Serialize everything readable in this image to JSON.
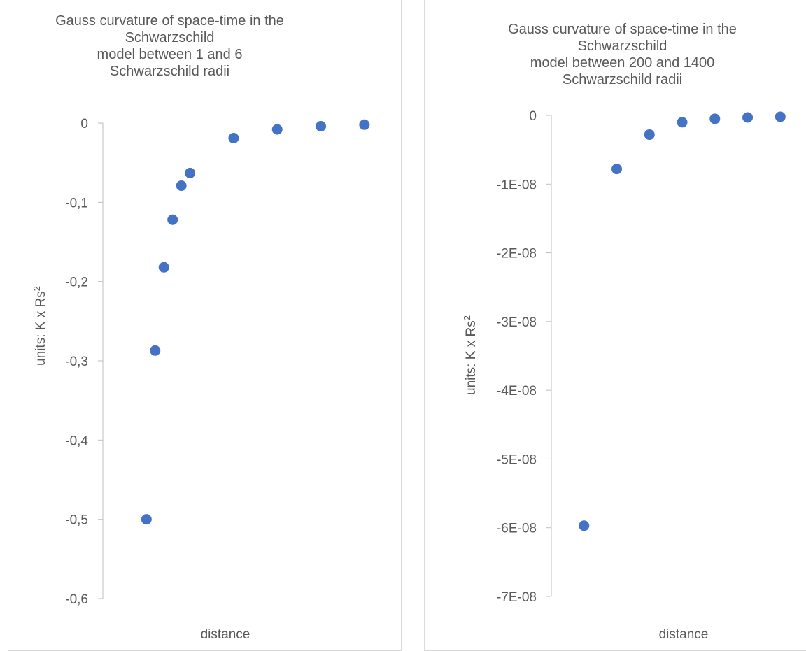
{
  "chart_data": [
    {
      "type": "scatter",
      "title_lines": [
        "Gauss curvature of space-time in the",
        "Schwarzschild",
        "model between 1 and 6",
        "Schwarzschild radii"
      ],
      "xlabel": "distance",
      "ylabel": "units:  K x Rs",
      "ylabel_superscript": "2",
      "yticks": [
        "0",
        "-0,1",
        "-0,2",
        "-0,3",
        "-0,4",
        "-0,5",
        "-0,6"
      ],
      "ylim": [
        -0.6,
        0
      ],
      "xlim": [
        0,
        6.5
      ],
      "grid": false,
      "marker_color": "#4472c4",
      "points": [
        {
          "x": 1.0,
          "y": -0.5
        },
        {
          "x": 1.2,
          "y": -0.287
        },
        {
          "x": 1.4,
          "y": -0.182
        },
        {
          "x": 1.6,
          "y": -0.122
        },
        {
          "x": 1.8,
          "y": -0.079
        },
        {
          "x": 2.0,
          "y": -0.063
        },
        {
          "x": 3.0,
          "y": -0.019
        },
        {
          "x": 4.0,
          "y": -0.008
        },
        {
          "x": 5.0,
          "y": -0.004
        },
        {
          "x": 6.0,
          "y": -0.002
        }
      ]
    },
    {
      "type": "scatter",
      "title_lines": [
        "Gauss curvature of space-time in the",
        "Schwarzschild",
        "model between 200 and 1400",
        "Schwarzschild radii"
      ],
      "xlabel": "distance",
      "ylabel": "units:  K x Rs",
      "ylabel_superscript": "2",
      "yticks": [
        "0",
        "-1E-08",
        "-2E-08",
        "-3E-08",
        "-4E-08",
        "-5E-08",
        "-6E-08",
        "-7E-08"
      ],
      "ylim": [
        -7e-08,
        0
      ],
      "xlim": [
        0,
        1450
      ],
      "grid": false,
      "marker_color": "#4472c4",
      "points": [
        {
          "x": 200,
          "y": -5.97e-08
        },
        {
          "x": 400,
          "y": -7.8e-09
        },
        {
          "x": 600,
          "y": -2.8e-09
        },
        {
          "x": 800,
          "y": -1e-09
        },
        {
          "x": 1000,
          "y": -5e-10
        },
        {
          "x": 1200,
          "y": -3e-10
        },
        {
          "x": 1400,
          "y": -2e-10
        }
      ]
    }
  ]
}
